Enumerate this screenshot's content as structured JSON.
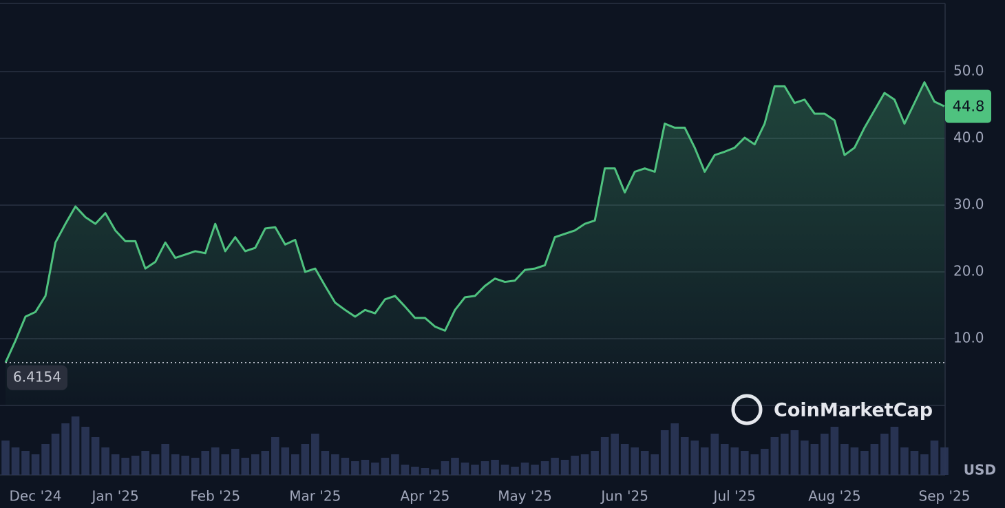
{
  "chart_data": {
    "type": "line",
    "categories": [
      null,
      null,
      null,
      "Dec '24",
      null,
      null,
      null,
      null,
      null,
      null,
      null,
      "Jan '25",
      null,
      null,
      null,
      null,
      null,
      null,
      null,
      null,
      null,
      "Feb '25",
      null,
      null,
      null,
      null,
      null,
      null,
      null,
      null,
      null,
      "Mar '25",
      null,
      null,
      null,
      null,
      null,
      null,
      null,
      null,
      null,
      null,
      "Apr '25",
      null,
      null,
      null,
      null,
      null,
      null,
      null,
      null,
      null,
      "May '25",
      null,
      null,
      null,
      null,
      null,
      null,
      null,
      null,
      null,
      "Jun '25",
      null,
      null,
      null,
      null,
      null,
      null,
      null,
      null,
      null,
      null,
      "Jul '25",
      null,
      null,
      null,
      null,
      null,
      null,
      null,
      null,
      null,
      "Aug '25",
      null,
      null,
      null,
      null,
      null,
      null,
      null,
      null,
      null,
      null,
      "Sep '25"
    ],
    "series": [
      {
        "color": "#4fc27f",
        "values": [
          6.4154,
          9.7,
          13.3,
          14.0,
          16.4,
          24.4,
          27.2,
          29.8,
          28.2,
          27.2,
          28.8,
          26.2,
          24.6,
          24.6,
          20.5,
          21.5,
          24.4,
          22.1,
          22.6,
          23.1,
          22.8,
          27.2,
          23.1,
          25.2,
          23.1,
          23.6,
          26.5,
          26.7,
          24.1,
          24.8,
          20.0,
          20.5,
          17.9,
          15.4,
          14.3,
          13.3,
          14.3,
          13.8,
          15.9,
          16.4,
          14.8,
          13.1,
          13.1,
          11.8,
          11.2,
          14.3,
          16.2,
          16.4,
          17.9,
          19.0,
          18.5,
          18.7,
          20.3,
          20.5,
          21.0,
          25.2,
          25.7,
          26.2,
          27.2,
          27.7,
          35.5,
          35.5,
          31.9,
          35.0,
          35.5,
          35.0,
          42.2,
          41.6,
          41.6,
          38.6,
          35.0,
          37.5,
          38.0,
          38.6,
          40.1,
          39.1,
          42.2,
          47.8,
          47.8,
          45.3,
          45.8,
          43.7,
          43.7,
          42.7,
          37.5,
          38.6,
          41.6,
          44.2,
          46.8,
          45.8,
          42.2,
          45.3,
          48.4,
          45.5,
          44.8
        ]
      }
    ],
    "volume": {
      "color": "#2b3658",
      "ylim": [
        0,
        100
      ],
      "values": [
        50,
        40,
        35,
        30,
        45,
        60,
        75,
        85,
        70,
        55,
        40,
        30,
        25,
        28,
        35,
        30,
        45,
        30,
        28,
        25,
        35,
        40,
        30,
        38,
        25,
        30,
        35,
        55,
        40,
        30,
        45,
        60,
        35,
        30,
        25,
        20,
        22,
        18,
        25,
        30,
        15,
        12,
        10,
        8,
        20,
        25,
        18,
        15,
        20,
        22,
        15,
        12,
        18,
        15,
        20,
        25,
        22,
        28,
        30,
        35,
        55,
        60,
        45,
        40,
        35,
        30,
        65,
        75,
        55,
        50,
        40,
        60,
        45,
        40,
        35,
        30,
        38,
        55,
        60,
        65,
        50,
        45,
        60,
        70,
        45,
        40,
        35,
        45,
        60,
        70,
        40,
        35,
        30,
        50,
        40
      ]
    },
    "ylim": [
      0,
      60
    ],
    "yticks": [
      {
        "value": 10,
        "label": "10.0"
      },
      {
        "value": 20,
        "label": "20.0"
      },
      {
        "value": 30,
        "label": "30.0"
      },
      {
        "value": 40,
        "label": "40.0"
      },
      {
        "value": 50,
        "label": "50.0"
      }
    ],
    "grid": true,
    "currency": "USD",
    "watermark": "CoinMarketCap"
  }
}
